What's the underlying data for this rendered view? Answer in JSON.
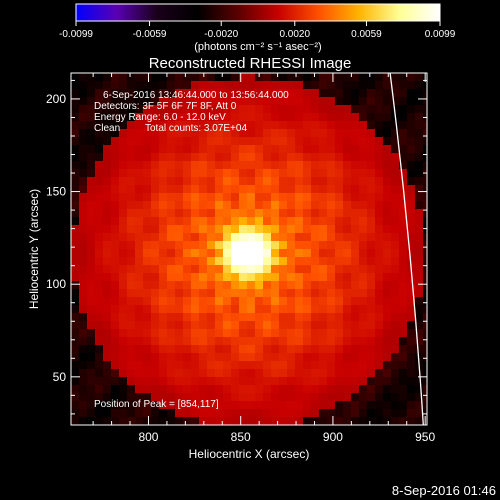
{
  "chart_data": {
    "type": "heatmap",
    "title": "Reconstructed RHESSI Image",
    "xlabel": "Heliocentric X (arcsec)",
    "ylabel": "Heliocentric Y (arcsec)",
    "xlim": [
      758,
      951
    ],
    "ylim": [
      24,
      214
    ],
    "x_ticks": [
      800,
      850,
      900,
      950
    ],
    "y_ticks": [
      50,
      100,
      150,
      200
    ],
    "colorbar": {
      "ticks": [
        "-0.0099",
        "-0.0059",
        "-0.0020",
        "0.0020",
        "0.0059",
        "0.0099"
      ],
      "tick_values": [
        -0.0099,
        -0.0059,
        -0.002,
        0.002,
        0.0059,
        0.0099
      ],
      "range": [
        -0.0099,
        0.0099
      ],
      "unit_label": "(photons cm⁻² s⁻¹ asec⁻²)",
      "colormap": [
        "#0000ff",
        "#5a00b4",
        "#1a001a",
        "#000000",
        "#5a0000",
        "#c80000",
        "#ff5000",
        "#ffb400",
        "#ffff96",
        "#ffffff"
      ]
    },
    "annotations": [
      "6-Sep-2016 13:46:44.000 to 13:56:44.000",
      "Detectors: 3F 5F 6F 7F 8F, Att 0",
      "Energy Range: 6.0 - 12.0 keV",
      "Clean",
      "Total counts: 3.07E+04"
    ],
    "peak_label": "Position of Peak = [854,117]",
    "peak": [
      854,
      117
    ],
    "limb": {
      "x_at_top": 931,
      "x_at_bottom": 949
    }
  },
  "footer": {
    "timestamp": "8-Sep-2016 01:46"
  }
}
